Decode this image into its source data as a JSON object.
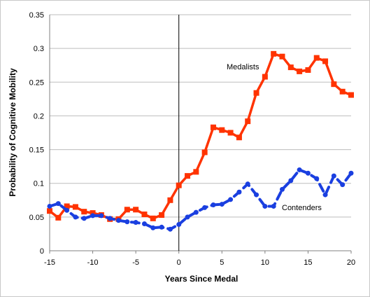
{
  "chart_data": {
    "type": "line",
    "xlabel": "Years Since Medal",
    "ylabel": "Probability of Cognitive Mobility",
    "xlim": [
      -15,
      20
    ],
    "ylim": [
      0,
      0.35
    ],
    "x_ticks": [
      -15,
      -10,
      -5,
      0,
      5,
      10,
      15,
      20
    ],
    "y_ticks": [
      0,
      0.05,
      0.1,
      0.15,
      0.2,
      0.25,
      0.3,
      0.35
    ],
    "y_tick_labels": [
      "0",
      "0.05",
      "0.1",
      "0.15",
      "0.2",
      "0.25",
      "0.3",
      "0.35"
    ],
    "grid": "horizontal",
    "legend": "none",
    "vertical_reference_line_x": 0,
    "x": [
      -15,
      -14,
      -13,
      -12,
      -11,
      -10,
      -9,
      -8,
      -7,
      -6,
      -5,
      -4,
      -3,
      -2,
      -1,
      0,
      1,
      2,
      3,
      4,
      5,
      6,
      7,
      8,
      9,
      10,
      11,
      12,
      13,
      14,
      15,
      16,
      17,
      18,
      19,
      20
    ],
    "series": [
      {
        "name": "Medalists",
        "color": "#ff3300",
        "style": "solid-square-markers",
        "values": [
          0.059,
          0.049,
          0.066,
          0.065,
          0.058,
          0.056,
          0.053,
          0.047,
          0.047,
          0.061,
          0.061,
          0.054,
          0.048,
          0.053,
          0.075,
          0.097,
          0.111,
          0.117,
          0.146,
          0.183,
          0.179,
          0.175,
          0.168,
          0.192,
          0.234,
          0.258,
          0.292,
          0.288,
          0.272,
          0.266,
          0.268,
          0.286,
          0.281,
          0.247,
          0.236,
          0.231
        ]
      },
      {
        "name": "Contenders",
        "color": "#1a3fe0",
        "style": "dashed-round-markers",
        "values": [
          0.066,
          0.07,
          0.06,
          0.05,
          0.048,
          0.052,
          0.052,
          0.048,
          0.045,
          0.043,
          0.042,
          0.04,
          0.034,
          0.035,
          0.032,
          0.039,
          0.05,
          0.057,
          0.064,
          0.068,
          0.069,
          0.076,
          0.087,
          0.099,
          0.083,
          0.066,
          0.066,
          0.091,
          0.104,
          0.12,
          0.115,
          0.107,
          0.083,
          0.111,
          0.098,
          0.115
        ]
      }
    ]
  }
}
